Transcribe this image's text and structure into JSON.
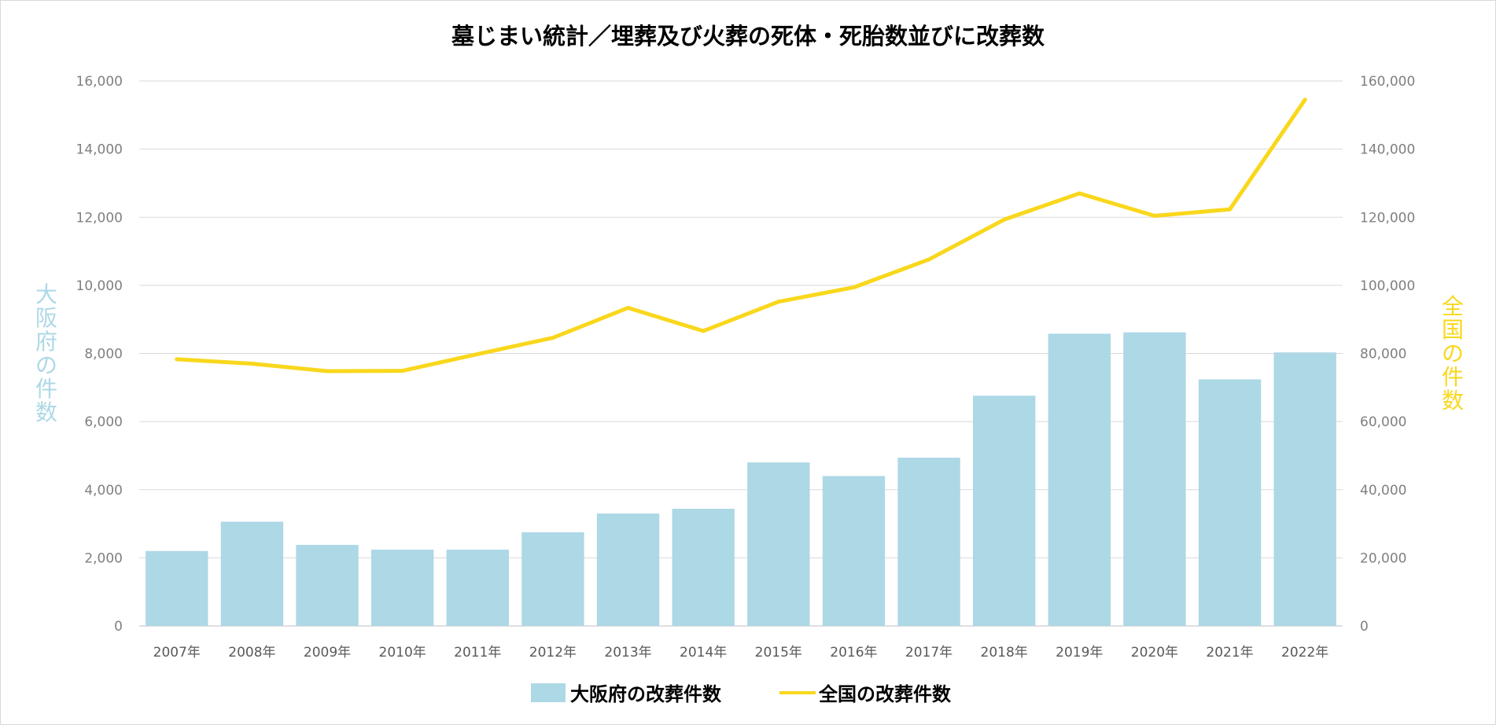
{
  "chart_data": {
    "type": "bar",
    "title": "墓じまい統計／埋葬及び火葬の死体・死胎数並びに改葬数",
    "categories": [
      "2007年",
      "2008年",
      "2009年",
      "2010年",
      "2011年",
      "2012年",
      "2013年",
      "2014年",
      "2015年",
      "2016年",
      "2017年",
      "2018年",
      "2019年",
      "2020年",
      "2021年",
      "2022年"
    ],
    "series": [
      {
        "name": "大阪府の改葬件数",
        "type": "bar",
        "axis": "left",
        "color": "#add8e6",
        "values": [
          2200,
          3060,
          2380,
          2240,
          2240,
          2750,
          3300,
          3440,
          4800,
          4400,
          4940,
          6760,
          8580,
          8620,
          7240,
          8030
        ]
      },
      {
        "name": "全国の改葬件数",
        "type": "line",
        "axis": "right",
        "color": "#f9d71c",
        "values": [
          78300,
          77000,
          74800,
          74900,
          79800,
          84600,
          93400,
          86600,
          95200,
          99400,
          107600,
          119300,
          127000,
          120400,
          122300,
          154500
        ]
      }
    ],
    "ylabel": "大阪府の件数",
    "ylabel_color": "#add8e6",
    "y2label": "全国の件数",
    "y2label_color": "#f9d71c",
    "ylim": [
      0,
      16000
    ],
    "y2lim": [
      0,
      160000
    ],
    "yticks": [
      "0",
      "2,000",
      "4,000",
      "6,000",
      "8,000",
      "10,000",
      "12,000",
      "14,000",
      "16,000"
    ],
    "y2ticks": [
      "0",
      "20,000",
      "40,000",
      "60,000",
      "80,000",
      "100,000",
      "120,000",
      "140,000",
      "160,000"
    ],
    "grid": true,
    "legend_position": "bottom"
  }
}
